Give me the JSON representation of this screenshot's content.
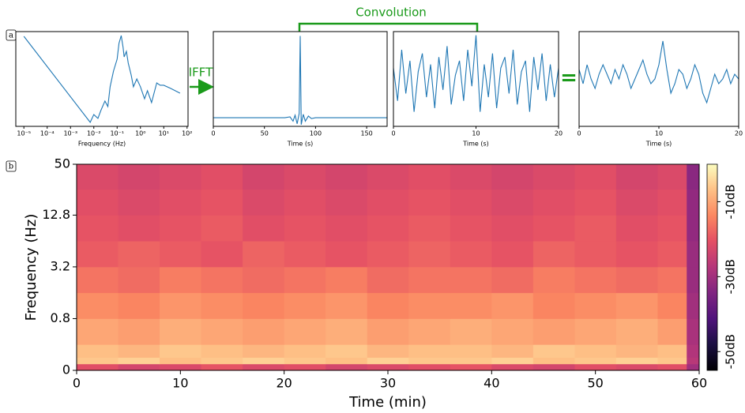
{
  "panel_labels": [
    "a",
    "b"
  ],
  "annotations": {
    "ifft": "IFFT",
    "convolution": "Convolution",
    "equals": "="
  },
  "chart_data": [
    {
      "type": "line",
      "xlabel": "Frequency (Hz)",
      "xscale": "log",
      "yscale": "log",
      "color": "#1f77b4",
      "x": [
        1e-05,
        0.007,
        0.01,
        0.015,
        0.02,
        0.03,
        0.04,
        0.05,
        0.07,
        0.1,
        0.12,
        0.15,
        0.18,
        0.2,
        0.25,
        0.3,
        0.4,
        0.5,
        0.7,
        1,
        1.5,
        2,
        3,
        5,
        7,
        10,
        20,
        50
      ],
      "values": [
        50,
        0.00018,
        0.00056,
        0.00032,
        0.001,
        0.004,
        0.0018,
        0.032,
        0.32,
        1.8,
        18,
        56,
        10,
        2.5,
        5.6,
        1,
        0.18,
        0.032,
        0.1,
        0.032,
        0.0056,
        0.018,
        0.0032,
        0.056,
        0.04,
        0.04,
        0.025,
        0.0126
      ],
      "xlim": [
        4.5e-06,
        110
      ],
      "ylim": [
        0.0001,
        100
      ],
      "xticks": [
        {
          "value": 1e-05,
          "label": "10⁻⁵"
        },
        {
          "value": 0.0001,
          "label": "10⁻⁴"
        },
        {
          "value": 0.001,
          "label": "10⁻³"
        },
        {
          "value": 0.01,
          "label": "10⁻²"
        },
        {
          "value": 0.1,
          "label": "10⁻¹"
        },
        {
          "value": 1,
          "label": "10⁰"
        },
        {
          "value": 10,
          "label": "10¹"
        },
        {
          "value": 100,
          "label": "10²"
        }
      ]
    },
    {
      "type": "line",
      "xlabel": "Time (s)",
      "color": "#1f77b4",
      "x": [
        0,
        70,
        75,
        78,
        80,
        82,
        84,
        85,
        86,
        88,
        90,
        93,
        96,
        100,
        170
      ],
      "values": [
        0,
        0,
        0.01,
        -0.04,
        0.03,
        -0.07,
        0.05,
        0.95,
        -0.08,
        0.04,
        -0.04,
        0.02,
        -0.01,
        0,
        0
      ],
      "xlim": [
        0,
        170
      ],
      "ylim": [
        -0.1,
        1.0
      ],
      "xticks": [
        0,
        50,
        100,
        150
      ]
    },
    {
      "type": "line",
      "xlabel": "Time (s)",
      "color": "#1f77b4",
      "x": [
        0,
        0.5,
        1,
        1.5,
        2,
        2.5,
        3,
        3.5,
        4,
        4.5,
        5,
        5.5,
        6,
        6.5,
        7,
        7.5,
        8,
        8.5,
        9,
        9.5,
        10,
        10.5,
        11,
        11.5,
        12,
        12.5,
        13,
        13.5,
        14,
        14.5,
        15,
        15.5,
        16,
        16.5,
        17,
        17.5,
        18,
        18.5,
        19,
        19.5,
        20
      ],
      "values": [
        0.3,
        -0.6,
        0.8,
        -0.4,
        0.5,
        -0.9,
        0.2,
        0.7,
        -0.5,
        0.4,
        -0.8,
        0.6,
        -0.3,
        0.9,
        -0.7,
        0.1,
        0.5,
        -0.6,
        0.8,
        -0.2,
        1.2,
        -0.9,
        0.4,
        -0.5,
        0.7,
        -0.8,
        0.3,
        0.6,
        -0.4,
        0.8,
        -0.7,
        0.2,
        0.5,
        -0.9,
        0.6,
        -0.3,
        0.7,
        -0.6,
        0.4,
        -0.5,
        0.3
      ],
      "xlim": [
        0,
        20
      ],
      "ylim": [
        -1.3,
        1.3
      ],
      "xticks": [
        0,
        10,
        20
      ]
    },
    {
      "type": "line",
      "xlabel": "Time (s)",
      "color": "#1f77b4",
      "x": [
        0,
        0.5,
        1,
        1.5,
        2,
        2.5,
        3,
        3.5,
        4,
        4.5,
        5,
        5.5,
        6,
        6.5,
        7,
        7.5,
        8,
        8.5,
        9,
        9.5,
        10,
        10.5,
        11,
        11.5,
        12,
        12.5,
        13,
        13.5,
        14,
        14.5,
        15,
        15.5,
        16,
        16.5,
        17,
        17.5,
        18,
        18.5,
        19,
        19.5,
        20
      ],
      "values": [
        0.2,
        -0.1,
        0.3,
        0.0,
        -0.2,
        0.1,
        0.3,
        0.1,
        -0.1,
        0.2,
        0.0,
        0.3,
        0.1,
        -0.2,
        0.0,
        0.2,
        0.4,
        0.1,
        -0.1,
        0.0,
        0.3,
        0.8,
        0.2,
        -0.3,
        -0.1,
        0.2,
        0.1,
        -0.2,
        0.0,
        0.3,
        0.1,
        -0.3,
        -0.5,
        -0.2,
        0.1,
        -0.1,
        0.0,
        0.2,
        -0.1,
        0.1,
        0.0
      ],
      "xlim": [
        0,
        20
      ],
      "ylim": [
        -1,
        1
      ],
      "xticks": [
        0,
        10,
        20
      ]
    },
    {
      "type": "heatmap",
      "xlabel": "Time (min)",
      "ylabel": "Frequency (Hz)",
      "x": [
        0,
        4,
        8,
        12,
        16,
        20,
        24,
        28,
        32,
        36,
        40,
        44,
        48,
        52,
        56,
        58.8,
        60
      ],
      "y": [
        0,
        0.1,
        0.2,
        0.4,
        0.8,
        1.6,
        3.2,
        6.4,
        12.8,
        25.6,
        50
      ],
      "z": [
        [
          -21,
          -23,
          -22,
          -20,
          -22,
          -21,
          -23,
          -22,
          -21,
          -20,
          -22,
          -23,
          -21,
          -22,
          -21,
          -30
        ],
        [
          -6,
          -5,
          -7,
          -6,
          -5,
          -6,
          -7,
          -5,
          -6,
          -6,
          -5,
          -7,
          -6,
          -5,
          -6,
          -27
        ],
        [
          -7,
          -8,
          -6,
          -7,
          -8,
          -7,
          -6,
          -8,
          -7,
          -7,
          -8,
          -6,
          -7,
          -8,
          -7,
          -28
        ],
        [
          -10,
          -11,
          -9,
          -10,
          -11,
          -10,
          -9,
          -11,
          -10,
          -9,
          -10,
          -11,
          -10,
          -9,
          -11,
          -29
        ],
        [
          -13,
          -14,
          -12,
          -13,
          -14,
          -13,
          -12,
          -14,
          -13,
          -13,
          -12,
          -14,
          -13,
          -12,
          -14,
          -30
        ],
        [
          -16,
          -17,
          -15,
          -16,
          -17,
          -16,
          -15,
          -17,
          -16,
          -16,
          -17,
          -15,
          -16,
          -17,
          -16,
          -31
        ],
        [
          -19,
          -18,
          -19,
          -20,
          -18,
          -19,
          -20,
          -19,
          -18,
          -19,
          -20,
          -18,
          -19,
          -20,
          -19,
          -31
        ],
        [
          -20,
          -21,
          -20,
          -19,
          -21,
          -20,
          -21,
          -20,
          -19,
          -20,
          -21,
          -20,
          -19,
          -21,
          -20,
          -32
        ],
        [
          -21,
          -22,
          -21,
          -20,
          -22,
          -21,
          -22,
          -21,
          -20,
          -21,
          -22,
          -21,
          -20,
          -22,
          -21,
          -32
        ],
        [
          -22,
          -23,
          -22,
          -21,
          -23,
          -22,
          -23,
          -22,
          -21,
          -22,
          -23,
          -22,
          -21,
          -23,
          -22,
          -33
        ]
      ],
      "xlim": [
        0,
        60
      ],
      "ylim": [
        0,
        50
      ],
      "xticks": [
        0,
        10,
        20,
        30,
        40,
        50,
        60
      ],
      "yticks": [
        0,
        0.8,
        3.2,
        12.8,
        50
      ],
      "yscale": "symlog",
      "linthresh": 0.8,
      "logbase": 4,
      "colormap": "magma",
      "clim": [
        -55,
        0
      ],
      "cticks": [
        {
          "value": -10,
          "label": "-10dB"
        },
        {
          "value": -30,
          "label": "-30dB"
        },
        {
          "value": -50,
          "label": "-50dB"
        }
      ]
    }
  ]
}
